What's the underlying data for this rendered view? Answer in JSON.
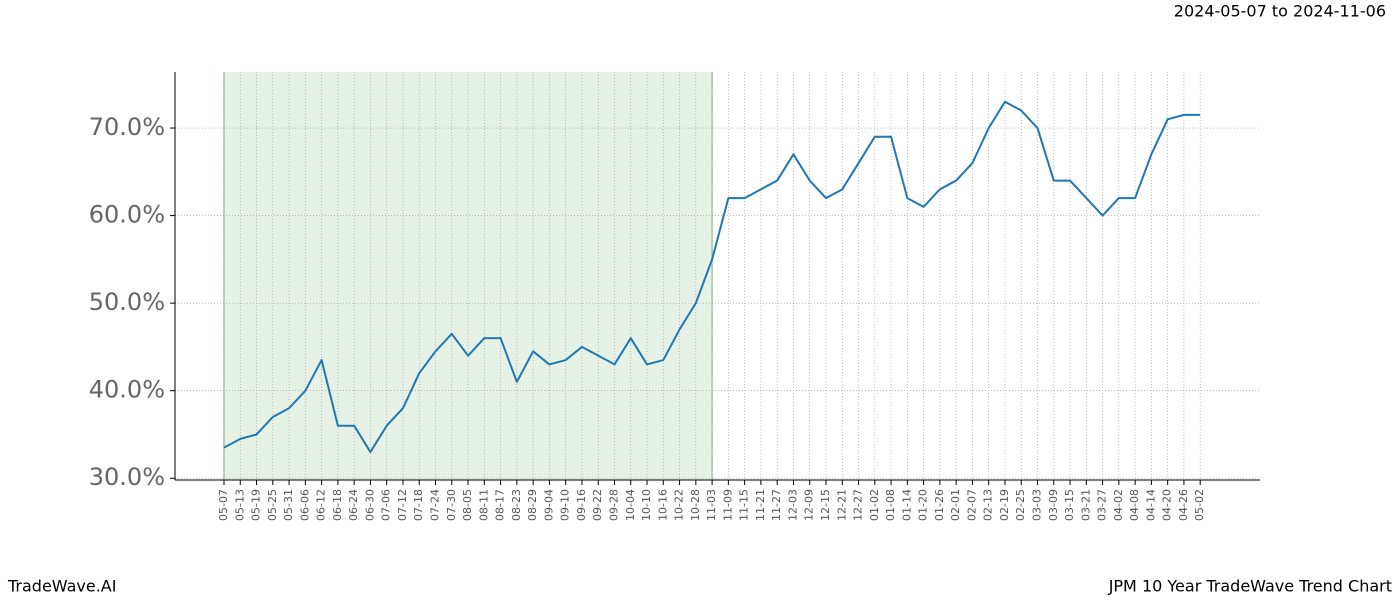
{
  "header": "2024-05-07 to 2024-11-06",
  "footer": {
    "left": "TradeWave.AI",
    "right": "JPM 10 Year TradeWave Trend Chart"
  },
  "chart_data": {
    "type": "line",
    "categories": [
      "05-07",
      "05-13",
      "05-19",
      "05-25",
      "05-31",
      "06-06",
      "06-12",
      "06-18",
      "06-24",
      "06-30",
      "07-06",
      "07-12",
      "07-18",
      "07-24",
      "07-30",
      "08-05",
      "08-11",
      "08-17",
      "08-23",
      "08-29",
      "09-04",
      "09-10",
      "09-16",
      "09-22",
      "09-28",
      "10-04",
      "10-10",
      "10-16",
      "10-22",
      "10-28",
      "11-03",
      "11-09",
      "11-15",
      "11-21",
      "11-27",
      "12-03",
      "12-09",
      "12-15",
      "12-21",
      "12-27",
      "01-02",
      "01-08",
      "01-14",
      "01-20",
      "01-26",
      "02-01",
      "02-07",
      "02-13",
      "02-19",
      "02-25",
      "03-03",
      "03-09",
      "03-15",
      "03-21",
      "03-27",
      "04-02",
      "04-08",
      "04-14",
      "04-20",
      "04-26",
      "05-02"
    ],
    "series": [
      {
        "color": "#1f77b4",
        "values": [
          33.5,
          34.5,
          35,
          37,
          38,
          40,
          43.5,
          36,
          36,
          33,
          36,
          38,
          42,
          44.5,
          46.5,
          44,
          46,
          46,
          41,
          44.5,
          43,
          43.5,
          45,
          44,
          43,
          46,
          43,
          43.5,
          47,
          50,
          55,
          62,
          62,
          63,
          64,
          67,
          64,
          62,
          63,
          66,
          69,
          69,
          62,
          61,
          63,
          64,
          66,
          70,
          73,
          72,
          70,
          64,
          64,
          62,
          60,
          62,
          62,
          67,
          71,
          71.5,
          71.5
        ]
      }
    ],
    "shaded_range": [
      "05-07",
      "11-03"
    ],
    "shade_color": "#e6f2e6",
    "ylim": [
      29.8,
      76.4
    ],
    "yticks": [
      {
        "value": 30,
        "label": "30.0%"
      },
      {
        "value": 40,
        "label": "40.0%"
      },
      {
        "value": 50,
        "label": "50.0%"
      },
      {
        "value": 60,
        "label": "60.0%"
      },
      {
        "value": 70,
        "label": "70.0%"
      }
    ],
    "grid": true
  }
}
